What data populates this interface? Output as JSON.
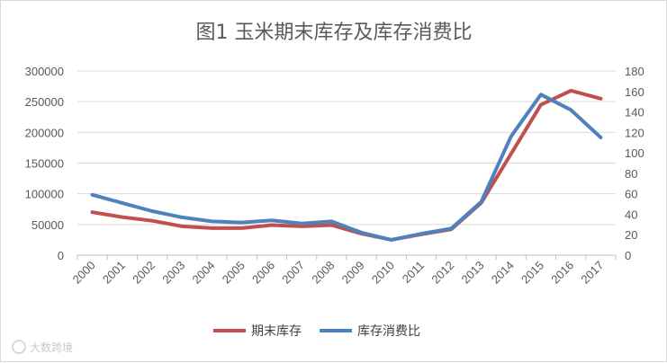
{
  "chart_data": {
    "type": "line",
    "title": "图1 玉米期末库存及库存消费比",
    "categories": [
      "2000",
      "2001",
      "2002",
      "2003",
      "2004",
      "2005",
      "2006",
      "2007",
      "2008",
      "2009",
      "2010",
      "2011",
      "2012",
      "2013",
      "2014",
      "2015",
      "2016",
      "2017"
    ],
    "y_left": {
      "ticks": [
        "0",
        "50000",
        "100000",
        "150000",
        "200000",
        "250000",
        "300000"
      ],
      "range": [
        0,
        300000
      ]
    },
    "y_right": {
      "ticks": [
        "0",
        "20",
        "40",
        "60",
        "80",
        "100",
        "120",
        "140",
        "160",
        "180"
      ],
      "range": [
        0,
        180
      ]
    },
    "series": [
      {
        "name": "期末库存",
        "axis": "left",
        "color": "#c0504d",
        "values": [
          70000,
          62000,
          56000,
          47000,
          44000,
          44000,
          49000,
          47000,
          49000,
          35000,
          25000,
          34000,
          42000,
          85000,
          165000,
          245000,
          268000,
          255000
        ]
      },
      {
        "name": "库存消费比",
        "axis": "right",
        "color": "#4f81bd",
        "values": [
          59,
          51,
          43,
          37,
          33,
          32,
          34,
          31,
          33,
          22,
          15,
          21,
          26,
          52,
          116,
          157,
          142,
          115
        ]
      }
    ],
    "legend": "bottom",
    "grid": true
  },
  "watermark": {
    "text": "大数跨境"
  }
}
